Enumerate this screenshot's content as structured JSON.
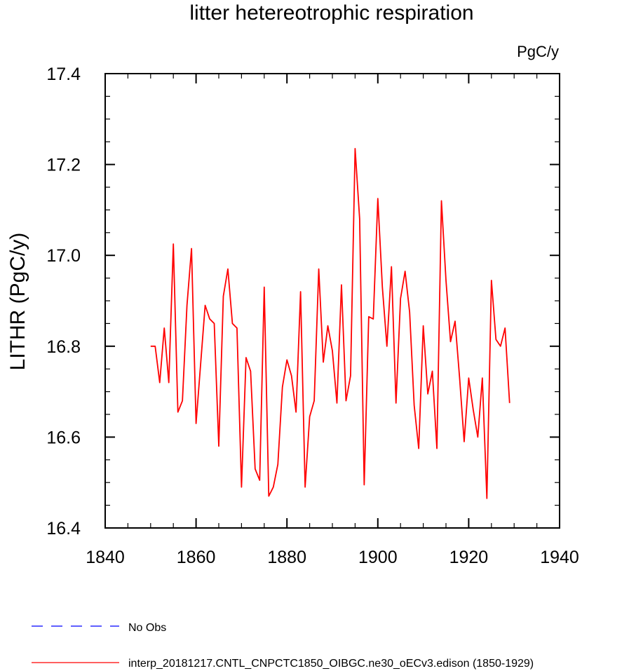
{
  "chart_data": {
    "type": "line",
    "title": "litter hetereotrophic respiration",
    "units": "PgC/y",
    "xlabel": "",
    "ylabel": "LITHR  (PgC/y)",
    "xlim": [
      1840,
      1940
    ],
    "ylim": [
      16.4,
      17.4
    ],
    "xticks": [
      1840,
      1860,
      1880,
      1900,
      1920,
      1940
    ],
    "yticks": [
      16.4,
      16.6,
      16.8,
      17.0,
      17.2,
      17.4
    ],
    "xtick_labels": [
      "1840",
      "1860",
      "1880",
      "1900",
      "1920",
      "1940"
    ],
    "ytick_labels": [
      "16.4",
      "16.6",
      "16.8",
      "17.0",
      "17.2",
      "17.4"
    ],
    "x_minor_step": 5,
    "y_minor_step": 0.05,
    "grid": false,
    "legend_position": "bottom-left",
    "series": [
      {
        "name": "interp_20181217.CNTL_CNPCTC1850_OIBGC.ne30_oECv3.edison (1850-1929)",
        "color": "#ff0000",
        "dash": "solid",
        "x": [
          1850,
          1851,
          1852,
          1853,
          1854,
          1855,
          1856,
          1857,
          1858,
          1859,
          1860,
          1861,
          1862,
          1863,
          1864,
          1865,
          1866,
          1867,
          1868,
          1869,
          1870,
          1871,
          1872,
          1873,
          1874,
          1875,
          1876,
          1877,
          1878,
          1879,
          1880,
          1881,
          1882,
          1883,
          1884,
          1885,
          1886,
          1887,
          1888,
          1889,
          1890,
          1891,
          1892,
          1893,
          1894,
          1895,
          1896,
          1897,
          1898,
          1899,
          1900,
          1901,
          1902,
          1903,
          1904,
          1905,
          1906,
          1907,
          1908,
          1909,
          1910,
          1911,
          1912,
          1913,
          1914,
          1915,
          1916,
          1917,
          1918,
          1919,
          1920,
          1921,
          1922,
          1923,
          1924,
          1925,
          1926,
          1927,
          1928,
          1929
        ],
        "values": [
          16.8,
          16.8,
          16.72,
          16.84,
          16.72,
          17.025,
          16.655,
          16.68,
          16.89,
          17.015,
          16.63,
          16.76,
          16.89,
          16.86,
          16.85,
          16.58,
          16.91,
          16.97,
          16.85,
          16.84,
          16.49,
          16.775,
          16.745,
          16.53,
          16.505,
          16.93,
          16.47,
          16.49,
          16.54,
          16.71,
          16.77,
          16.735,
          16.655,
          16.92,
          16.49,
          16.645,
          16.68,
          16.97,
          16.765,
          16.845,
          16.79,
          16.675,
          16.935,
          16.68,
          16.735,
          17.235,
          17.08,
          16.495,
          16.865,
          16.86,
          17.125,
          16.93,
          16.8,
          16.975,
          16.675,
          16.905,
          16.965,
          16.875,
          16.67,
          16.575,
          16.845,
          16.695,
          16.745,
          16.575,
          17.12,
          16.945,
          16.81,
          16.855,
          16.73,
          16.59,
          16.73,
          16.66,
          16.6,
          16.73,
          16.465,
          16.945,
          16.815,
          16.8,
          16.84,
          16.675
        ]
      },
      {
        "name": "No Obs",
        "color": "#0000ff",
        "dash": "dashed",
        "x": [],
        "values": []
      }
    ]
  }
}
